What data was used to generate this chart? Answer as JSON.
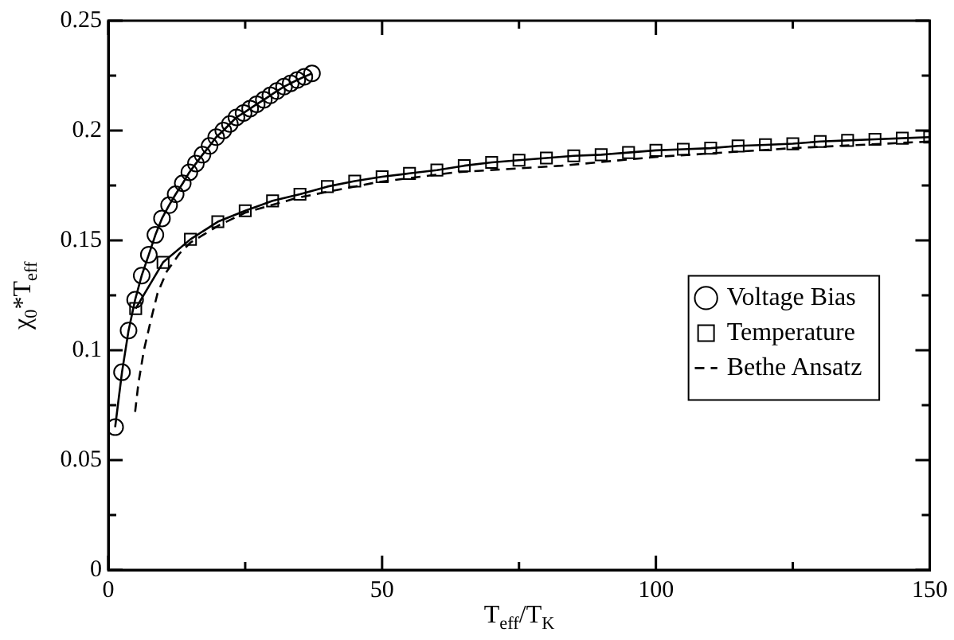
{
  "chart_data": {
    "type": "line",
    "xlabel": "T$_{eff}$/T$_{K}$",
    "ylabel": "χ$_{0}$*T$_{eff}$",
    "xlim": [
      0,
      150
    ],
    "ylim": [
      0,
      0.25
    ],
    "xticks": [
      0,
      {
        "value": 25,
        "label": null
      },
      50,
      {
        "value": 75,
        "label": null
      },
      100,
      {
        "value": 125,
        "label": null
      },
      150
    ],
    "yticks": [
      0,
      {
        "value": 0.025,
        "label": null
      },
      0.05,
      {
        "value": 0.075,
        "label": null
      },
      0.1,
      {
        "value": 0.125,
        "label": null
      },
      0.15,
      {
        "value": 0.175,
        "label": null
      },
      0.2,
      {
        "value": 0.225,
        "label": null
      },
      0.25
    ],
    "grid": false,
    "legend": "right",
    "series": [
      {
        "name": "Voltage Bias",
        "color": "#000000",
        "marker": "circle",
        "line_style": "solid",
        "x": [
          1.25,
          2.5,
          3.7,
          4.9,
          6.1,
          7.4,
          8.6,
          9.8,
          11.1,
          12.3,
          13.6,
          14.8,
          16.0,
          17.2,
          18.5,
          19.7,
          21.0,
          22.2,
          23.4,
          24.7,
          25.9,
          27.1,
          28.4,
          29.6,
          30.8,
          32.1,
          33.3,
          34.5,
          35.8,
          37.2
        ],
        "values": [
          0.065,
          0.09,
          0.109,
          0.123,
          0.134,
          0.1435,
          0.1525,
          0.16,
          0.166,
          0.171,
          0.176,
          0.181,
          0.185,
          0.189,
          0.193,
          0.197,
          0.2,
          0.203,
          0.206,
          0.208,
          0.21,
          0.212,
          0.214,
          0.216,
          0.218,
          0.22,
          0.2215,
          0.223,
          0.2245,
          0.226
        ]
      },
      {
        "name": "Temperature",
        "color": "#000000",
        "marker": "square",
        "line_style": "solid",
        "x": [
          5,
          10,
          15,
          20,
          25,
          30,
          35,
          40,
          45,
          50,
          55,
          60,
          65,
          70,
          75,
          80,
          85,
          90,
          95,
          100,
          105,
          110,
          115,
          120,
          125,
          130,
          135,
          140,
          145,
          150
        ],
        "values": [
          0.119,
          0.14,
          0.1505,
          0.1585,
          0.1635,
          0.168,
          0.171,
          0.1745,
          0.177,
          0.179,
          0.1805,
          0.182,
          0.184,
          0.1855,
          0.1865,
          0.1875,
          0.1885,
          0.189,
          0.19,
          0.191,
          0.1915,
          0.192,
          0.193,
          0.1935,
          0.194,
          0.195,
          0.1955,
          0.196,
          0.1965,
          0.197
        ]
      },
      {
        "name": "Bethe Ansatz",
        "color": "#000000",
        "marker": "none",
        "line_style": "dashed",
        "x": [
          4.9,
          5.5,
          6.5,
          7.8,
          9,
          10.7,
          13,
          15,
          20.3,
          25.1,
          34.7,
          49.1,
          63.5,
          82.8,
          100,
          125,
          150
        ],
        "values": [
          0.072,
          0.085,
          0.1,
          0.114,
          0.126,
          0.136,
          0.144,
          0.149,
          0.157,
          0.1627,
          0.1695,
          0.1765,
          0.181,
          0.184,
          0.188,
          0.192,
          0.195
        ]
      }
    ]
  }
}
